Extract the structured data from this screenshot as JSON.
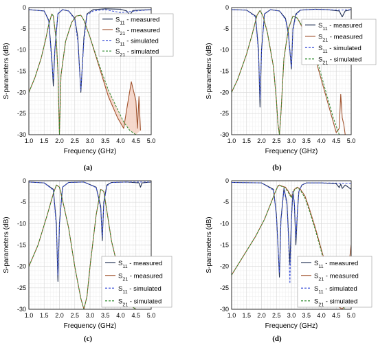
{
  "figure": {
    "captions": [
      "(a)",
      "(b)",
      "(c)",
      "(d)"
    ]
  },
  "style": {
    "s11_measured_color": "#1f2d4f",
    "s21_measured_color": "#a0522d",
    "s11_simulated_color": "#3a4fd8",
    "s21_simulated_color": "#2e8b2e",
    "fill_color": "#f2c9b8",
    "grid_color": "#d9d9d9",
    "axis_color": "#000000"
  },
  "chart_data": [
    {
      "type": "line",
      "panel": "a",
      "xlabel": "Frequency (GHz)",
      "ylabel": "S-parameters (dB)",
      "xlim": [
        1.0,
        5.0
      ],
      "ylim": [
        -30,
        0
      ],
      "xticks": [
        "1.0",
        "1.5",
        "2.0",
        "2.5",
        "3.0",
        "3.5",
        "4.0",
        "4.5",
        "5.0"
      ],
      "yticks": [
        "0",
        "-5",
        "-10",
        "-15",
        "-20",
        "-25",
        "-30"
      ],
      "grid": true,
      "legend_position": "top-right",
      "series": [
        {
          "name": "S11 - measured",
          "legend_main": "S",
          "legend_sub": "11",
          "legend_rest": " - measured",
          "style": "solid",
          "x": [
            1.0,
            1.5,
            1.65,
            1.75,
            1.8,
            1.85,
            1.95,
            2.1,
            2.3,
            2.5,
            2.6,
            2.7,
            2.8,
            2.9,
            3.1,
            3.5,
            4.0,
            4.2,
            4.3,
            4.4,
            4.6,
            5.0
          ],
          "y": [
            -0.5,
            -0.8,
            -3.0,
            -12.0,
            -18.5,
            -10.0,
            -1.5,
            -0.5,
            -0.8,
            -2.5,
            -7.0,
            -20.0,
            -7.0,
            -1.5,
            -0.5,
            -0.3,
            -0.4,
            -0.8,
            -1.8,
            -0.7,
            -0.6,
            -0.5
          ]
        },
        {
          "name": "S21 - measured",
          "legend_main": "S",
          "legend_sub": "21",
          "legend_rest": " - measured",
          "style": "solid",
          "x": [
            1.0,
            1.2,
            1.4,
            1.55,
            1.65,
            1.75,
            1.8,
            1.9,
            1.95,
            2.0,
            2.05,
            2.2,
            2.4,
            2.55,
            2.7,
            2.8,
            3.0,
            3.3,
            3.6,
            3.9,
            4.1,
            4.2,
            4.35,
            4.5,
            4.55,
            4.6,
            4.65
          ],
          "y": [
            -20.0,
            -16.5,
            -12.0,
            -7.5,
            -4.0,
            -1.5,
            -2.0,
            -8.0,
            -15.0,
            -30.0,
            -16.0,
            -8.0,
            -3.5,
            -2.0,
            -1.8,
            -3.0,
            -7.0,
            -14.0,
            -21.0,
            -26.0,
            -28.5,
            -24.0,
            -17.5,
            -22.0,
            -28.5,
            -21.0,
            -29.0
          ]
        },
        {
          "name": "S11 - simulated",
          "legend_main": "S",
          "legend_sub": "11",
          "legend_rest": " - simulated",
          "style": "dashed",
          "x": [
            1.0,
            1.5,
            1.65,
            1.75,
            1.8,
            1.85,
            1.95,
            2.1,
            2.3,
            2.5,
            2.6,
            2.7,
            2.8,
            2.9,
            3.1,
            3.5,
            4.0,
            4.5,
            5.0
          ],
          "y": [
            -0.5,
            -0.8,
            -3.2,
            -13.0,
            -17.0,
            -9.5,
            -1.4,
            -0.5,
            -0.8,
            -2.8,
            -8.0,
            -19.5,
            -8.0,
            -1.8,
            -0.8,
            -0.5,
            -1.2,
            -0.8,
            -0.5
          ]
        },
        {
          "name": "S21 - simulated",
          "legend_main": "S",
          "legend_sub": "21",
          "legend_rest": " - simulated",
          "style": "dashed",
          "x": [
            1.0,
            1.2,
            1.4,
            1.55,
            1.65,
            1.75,
            1.8,
            1.9,
            1.95,
            2.0,
            2.05,
            2.2,
            2.4,
            2.55,
            2.7,
            2.8,
            3.0,
            3.3,
            3.6,
            3.9,
            4.1,
            4.3,
            4.5
          ],
          "y": [
            -20.0,
            -16.5,
            -12.0,
            -7.5,
            -4.0,
            -1.5,
            -2.0,
            -8.0,
            -15.0,
            -30.0,
            -16.0,
            -8.0,
            -3.5,
            -2.0,
            -1.8,
            -3.0,
            -7.0,
            -13.5,
            -19.5,
            -24.0,
            -27.0,
            -29.0,
            -30.0
          ]
        }
      ]
    },
    {
      "type": "line",
      "panel": "b",
      "xlabel": "Frequency (GHz)",
      "ylabel": "S-parameters (dB)",
      "xlim": [
        1.0,
        5.0
      ],
      "ylim": [
        -30,
        0
      ],
      "xticks": [
        "1.0",
        "1.5",
        "2.0",
        "2.5",
        "3.0",
        "3.5",
        "4.0",
        "4.5",
        "5.0"
      ],
      "yticks": [
        "0",
        "-5",
        "-10",
        "-15",
        "-20",
        "-25",
        "-30"
      ],
      "grid": true,
      "legend_position": "top-right",
      "series": [
        {
          "name": "S11 - measured",
          "legend_main": "S",
          "legend_sub": "11",
          "legend_rest": " - measured",
          "style": "solid",
          "x": [
            1.0,
            1.5,
            1.8,
            1.9,
            1.95,
            2.0,
            2.1,
            2.3,
            2.6,
            2.8,
            2.9,
            3.0,
            3.05,
            3.15,
            3.3,
            3.8,
            4.2,
            4.6,
            4.7,
            4.8,
            5.0
          ],
          "y": [
            -0.5,
            -0.6,
            -2.0,
            -10.0,
            -23.5,
            -10.0,
            -1.5,
            -0.5,
            -0.8,
            -2.5,
            -6.0,
            -14.5,
            -5.0,
            -1.5,
            -0.6,
            -0.4,
            -0.5,
            -0.8,
            -2.2,
            -0.8,
            -0.5
          ]
        },
        {
          "name": "S21 - measured",
          "legend_main": "S",
          "legend_sub": "21",
          "legend_rest": " - measured",
          "style": "solid",
          "x": [
            1.0,
            1.2,
            1.5,
            1.7,
            1.85,
            1.95,
            2.05,
            2.2,
            2.4,
            2.5,
            2.55,
            2.6,
            2.65,
            2.75,
            2.9,
            3.05,
            3.2,
            3.5,
            3.8,
            4.2,
            4.5,
            4.6,
            4.65,
            4.7,
            4.75,
            4.8
          ],
          "y": [
            -20.0,
            -17.0,
            -11.0,
            -6.0,
            -1.8,
            -0.7,
            -2.0,
            -6.0,
            -14.0,
            -22.0,
            -27.5,
            -30.0,
            -25.0,
            -12.0,
            -5.0,
            -2.0,
            -2.5,
            -6.5,
            -12.0,
            -22.0,
            -29.5,
            -28.5,
            -20.5,
            -26.0,
            -27.5,
            -30.0
          ]
        },
        {
          "name": "S11 - simulated",
          "legend_main": "S",
          "legend_sub": "11",
          "legend_rest": " - simulated",
          "style": "dashed",
          "x": [
            1.0,
            1.5,
            1.8,
            1.9,
            1.95,
            2.0,
            2.1,
            2.3,
            2.6,
            2.8,
            2.9,
            3.0,
            3.05,
            3.15,
            3.3,
            3.8,
            4.2,
            4.6,
            5.0
          ],
          "y": [
            -0.5,
            -0.6,
            -2.2,
            -11.0,
            -21.5,
            -10.5,
            -1.5,
            -0.5,
            -0.8,
            -2.8,
            -6.5,
            -14.0,
            -5.5,
            -1.8,
            -0.6,
            -0.4,
            -0.5,
            -0.6,
            -0.5
          ]
        },
        {
          "name": "S21 - simulated",
          "legend_main": "S",
          "legend_sub": "21",
          "legend_rest": " - simulated",
          "style": "dashed",
          "x": [
            1.0,
            1.2,
            1.5,
            1.7,
            1.85,
            1.95,
            2.05,
            2.2,
            2.4,
            2.5,
            2.55,
            2.6,
            2.65,
            2.75,
            2.9,
            3.05,
            3.2,
            3.5,
            3.8,
            4.1,
            4.4,
            4.6
          ],
          "y": [
            -20.0,
            -17.0,
            -11.0,
            -6.0,
            -1.8,
            -0.7,
            -2.0,
            -6.0,
            -14.0,
            -22.0,
            -27.5,
            -30.0,
            -25.0,
            -12.0,
            -5.0,
            -2.0,
            -2.5,
            -6.0,
            -11.0,
            -18.5,
            -26.0,
            -30.0
          ]
        }
      ]
    },
    {
      "type": "line",
      "panel": "c",
      "xlabel": "Frequency (GHz)",
      "ylabel": "S-parameters (dB)",
      "xlim": [
        1.0,
        5.0
      ],
      "ylim": [
        -30,
        0
      ],
      "xticks": [
        "1.0",
        "1.5",
        "2.0",
        "2.5",
        "3.0",
        "3.5",
        "4.0",
        "4.5",
        "5.0"
      ],
      "yticks": [
        "0",
        "-5",
        "-10",
        "-15",
        "-20",
        "-25",
        "-30"
      ],
      "grid": true,
      "legend_position": "bottom-right",
      "series": [
        {
          "name": "S11 - measured",
          "legend_main": "S",
          "legend_sub": "11",
          "legend_rest": " - measured",
          "style": "solid",
          "x": [
            1.0,
            1.5,
            1.8,
            1.9,
            1.95,
            2.0,
            2.1,
            2.3,
            2.8,
            3.2,
            3.35,
            3.4,
            3.45,
            3.55,
            3.7,
            4.2,
            4.6,
            4.65,
            4.7,
            5.0
          ],
          "y": [
            -0.3,
            -0.5,
            -2.0,
            -10.0,
            -23.5,
            -10.0,
            -1.5,
            -0.4,
            -0.3,
            -1.5,
            -6.0,
            -14.0,
            -5.0,
            -1.0,
            -0.4,
            -0.3,
            -0.5,
            -1.5,
            -0.5,
            -0.3
          ]
        },
        {
          "name": "S21 - measured",
          "legend_main": "S",
          "legend_sub": "21",
          "legend_rest": " - measured",
          "style": "solid",
          "x": [
            1.0,
            1.3,
            1.6,
            1.8,
            1.9,
            2.0,
            2.1,
            2.3,
            2.5,
            2.7,
            2.8,
            2.9,
            3.0,
            3.2,
            3.35,
            3.45,
            3.55,
            3.7,
            3.9,
            4.1,
            4.3,
            4.5
          ],
          "y": [
            -20.0,
            -15.0,
            -8.0,
            -3.0,
            -1.0,
            -1.5,
            -4.5,
            -11.0,
            -20.0,
            -27.5,
            -30.0,
            -27.0,
            -20.0,
            -8.0,
            -2.0,
            -2.5,
            -7.0,
            -14.0,
            -20.0,
            -25.5,
            -29.0,
            -30.0
          ]
        },
        {
          "name": "S11 - simulated",
          "legend_main": "S",
          "legend_sub": "11",
          "legend_rest": " - simulated",
          "style": "dashed",
          "x": [
            1.0,
            1.5,
            1.8,
            1.9,
            1.95,
            2.0,
            2.1,
            2.3,
            2.8,
            3.2,
            3.35,
            3.4,
            3.45,
            3.55,
            3.7,
            4.2,
            5.0
          ],
          "y": [
            -0.3,
            -0.5,
            -2.2,
            -11.0,
            -22.0,
            -10.5,
            -1.5,
            -0.4,
            -0.3,
            -1.6,
            -6.5,
            -13.0,
            -5.5,
            -1.2,
            -0.4,
            -0.3,
            -0.3
          ]
        },
        {
          "name": "S21 - simulated",
          "legend_main": "S",
          "legend_sub": "21",
          "legend_rest": " - simulated",
          "style": "dashed",
          "x": [
            1.0,
            1.3,
            1.6,
            1.8,
            1.9,
            2.0,
            2.1,
            2.3,
            2.5,
            2.7,
            2.8,
            2.9,
            3.0,
            3.2,
            3.35,
            3.45,
            3.55,
            3.7,
            3.9,
            4.1,
            4.3,
            4.5
          ],
          "y": [
            -20.0,
            -15.0,
            -8.0,
            -3.0,
            -1.0,
            -1.5,
            -4.5,
            -11.0,
            -20.0,
            -27.5,
            -30.0,
            -27.0,
            -20.0,
            -8.0,
            -2.0,
            -2.5,
            -7.0,
            -14.0,
            -20.0,
            -25.5,
            -29.0,
            -30.0
          ]
        }
      ]
    },
    {
      "type": "line",
      "panel": "d",
      "xlabel": "Frequency (GHz)",
      "ylabel": "S-parameters (dB)",
      "xlim": [
        1.0,
        5.0
      ],
      "ylim": [
        -30,
        0
      ],
      "xticks": [
        "1.0",
        "1.5",
        "2.0",
        "2.5",
        "3.0",
        "3.5",
        "4.0",
        "4.5",
        "5.0"
      ],
      "yticks": [
        "0",
        "-5",
        "-10",
        "-15",
        "-20",
        "-25",
        "-30"
      ],
      "grid": true,
      "legend_position": "bottom-right",
      "series": [
        {
          "name": "S11 - measured",
          "legend_main": "S",
          "legend_sub": "11",
          "legend_rest": " - measured",
          "style": "solid",
          "x": [
            1.0,
            2.0,
            2.4,
            2.5,
            2.55,
            2.6,
            2.65,
            2.75,
            2.85,
            2.9,
            2.95,
            3.0,
            3.05,
            3.1,
            3.15,
            3.2,
            3.25,
            3.35,
            3.5,
            4.0,
            4.5,
            4.6,
            4.65,
            4.7,
            4.8,
            4.9,
            5.0
          ],
          "y": [
            -0.4,
            -0.5,
            -2.0,
            -8.0,
            -15.0,
            -22.5,
            -9.0,
            -1.8,
            -5.0,
            -12.0,
            -19.5,
            -9.0,
            -2.5,
            -5.5,
            -15.0,
            -7.5,
            -2.5,
            -1.0,
            -0.5,
            -0.5,
            -0.7,
            -1.6,
            -0.8,
            -1.8,
            -1.0,
            -1.5,
            -2.0
          ]
        },
        {
          "name": "S21 - measured",
          "legend_main": "S",
          "legend_sub": "21",
          "legend_rest": " - measured",
          "style": "solid",
          "x": [
            1.0,
            1.4,
            1.8,
            2.1,
            2.3,
            2.45,
            2.55,
            2.6,
            2.7,
            2.8,
            2.9,
            3.0,
            3.1,
            3.2,
            3.3,
            3.45,
            3.6,
            3.8,
            4.0,
            4.2,
            4.4,
            4.6,
            4.7,
            4.8,
            4.9,
            5.0
          ],
          "y": [
            -22.0,
            -17.5,
            -13.0,
            -9.0,
            -5.5,
            -2.8,
            -1.2,
            -1.0,
            -1.3,
            -1.5,
            -2.5,
            -3.8,
            -2.0,
            -1.5,
            -2.0,
            -3.5,
            -6.5,
            -11.0,
            -16.0,
            -21.0,
            -26.0,
            -29.5,
            -30.0,
            -29.0,
            -21.0,
            -15.0
          ]
        },
        {
          "name": "S11 - simulated",
          "legend_main": "S",
          "legend_sub": "11",
          "legend_rest": " - simulated",
          "style": "dashed",
          "x": [
            1.0,
            2.0,
            2.4,
            2.5,
            2.55,
            2.6,
            2.65,
            2.75,
            2.85,
            2.9,
            2.95,
            3.0,
            3.05,
            3.1,
            3.15,
            3.2,
            3.25,
            3.35,
            3.5,
            4.0,
            5.0
          ],
          "y": [
            -0.4,
            -0.5,
            -2.2,
            -8.5,
            -15.5,
            -21.5,
            -9.5,
            -2.0,
            -5.5,
            -13.0,
            -24.0,
            -9.5,
            -2.5,
            -5.0,
            -13.5,
            -7.0,
            -2.5,
            -1.0,
            -0.5,
            -0.5,
            -0.6
          ]
        },
        {
          "name": "S21 - simulated",
          "legend_main": "S",
          "legend_sub": "21",
          "legend_rest": " - simulated",
          "style": "dashed",
          "x": [
            1.0,
            1.4,
            1.8,
            2.1,
            2.3,
            2.45,
            2.55,
            2.6,
            2.7,
            2.8,
            2.9,
            3.0,
            3.1,
            3.2,
            3.3,
            3.45,
            3.6,
            3.8,
            4.0,
            4.2,
            4.4,
            4.6,
            4.8
          ],
          "y": [
            -22.0,
            -17.5,
            -13.0,
            -9.0,
            -5.5,
            -2.8,
            -1.3,
            -1.1,
            -1.4,
            -1.7,
            -2.8,
            -4.0,
            -2.2,
            -1.6,
            -2.2,
            -4.0,
            -7.0,
            -11.5,
            -16.5,
            -21.0,
            -25.0,
            -28.0,
            -30.0
          ]
        }
      ]
    }
  ]
}
